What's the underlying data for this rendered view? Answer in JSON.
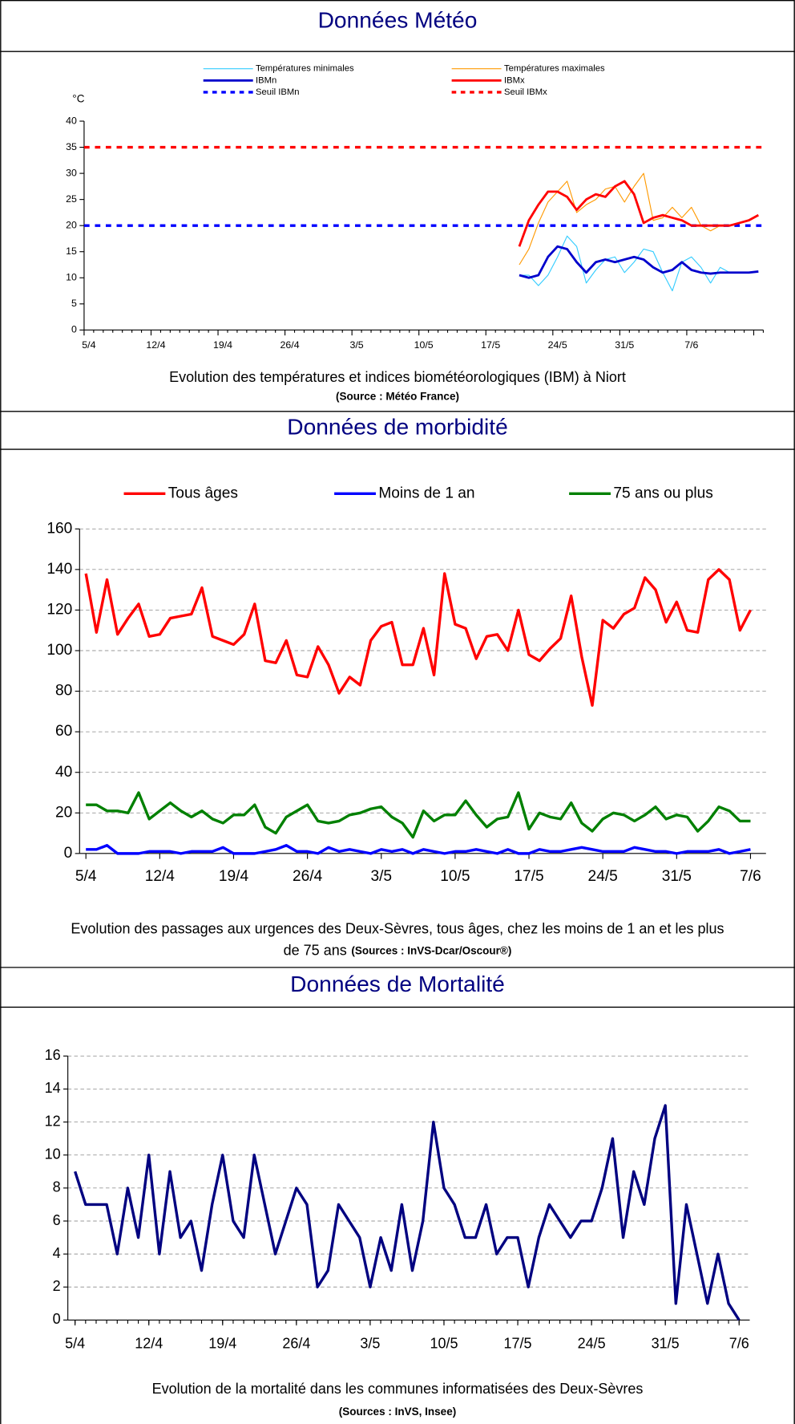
{
  "chart_data": [
    {
      "type": "line",
      "heading": "Données Météo",
      "y_label": "°C",
      "title": "Evolution des températures et indices biométéorologiques (IBM) à Niort",
      "source": "(Source : Météo France)",
      "categories": [
        "5/4",
        null,
        null,
        null,
        null,
        null,
        null,
        "12/4",
        null,
        null,
        null,
        null,
        null,
        null,
        "19/4",
        null,
        null,
        null,
        null,
        null,
        null,
        "26/4",
        null,
        null,
        null,
        null,
        null,
        null,
        "3/5",
        null,
        null,
        null,
        null,
        null,
        null,
        "10/5",
        null,
        null,
        null,
        null,
        null,
        null,
        "17/5",
        null,
        null,
        null,
        null,
        null,
        null,
        "24/5",
        null,
        null,
        null,
        null,
        null,
        null,
        "31/5",
        null,
        null,
        null,
        null,
        null,
        null,
        "7/6",
        null,
        null,
        null,
        null,
        null,
        null,
        null
      ],
      "series": [
        {
          "name": "Températures minimales",
          "color": "#33ccff",
          "values": [
            null,
            null,
            null,
            null,
            null,
            null,
            null,
            null,
            null,
            null,
            null,
            null,
            null,
            null,
            null,
            null,
            null,
            null,
            null,
            null,
            null,
            null,
            null,
            null,
            null,
            null,
            null,
            null,
            null,
            null,
            null,
            null,
            null,
            null,
            null,
            null,
            null,
            null,
            null,
            null,
            null,
            null,
            null,
            null,
            null,
            10.5,
            10.5,
            8.5,
            10.5,
            14,
            18,
            16,
            9,
            11.5,
            13.5,
            14,
            11,
            13,
            15.5,
            15,
            11,
            7.5,
            13,
            14,
            12,
            9,
            12,
            11,
            null,
            null,
            null
          ]
        },
        {
          "name": "Températures maximales",
          "color": "#ff9900",
          "values": [
            null,
            null,
            null,
            null,
            null,
            null,
            null,
            null,
            null,
            null,
            null,
            null,
            null,
            null,
            null,
            null,
            null,
            null,
            null,
            null,
            null,
            null,
            null,
            null,
            null,
            null,
            null,
            null,
            null,
            null,
            null,
            null,
            null,
            null,
            null,
            null,
            null,
            null,
            null,
            null,
            null,
            null,
            null,
            null,
            null,
            12.5,
            15.5,
            20.5,
            24.5,
            26.5,
            28.5,
            22.5,
            24,
            25,
            27,
            27.5,
            24.5,
            27.5,
            30,
            21,
            21.5,
            23.5,
            21.5,
            23.5,
            20,
            19,
            20,
            20,
            null,
            null,
            null
          ]
        },
        {
          "name": "IBMn",
          "color": "#0000cc",
          "values": [
            null,
            null,
            null,
            null,
            null,
            null,
            null,
            null,
            null,
            null,
            null,
            null,
            null,
            null,
            null,
            null,
            null,
            null,
            null,
            null,
            null,
            null,
            null,
            null,
            null,
            null,
            null,
            null,
            null,
            null,
            null,
            null,
            null,
            null,
            null,
            null,
            null,
            null,
            null,
            null,
            null,
            null,
            null,
            null,
            null,
            10.5,
            10,
            10.5,
            14,
            16,
            15.5,
            13,
            11,
            13,
            13.5,
            13,
            13.5,
            14,
            13.5,
            12,
            11,
            11.5,
            13,
            11.5,
            11,
            10.8,
            11,
            11,
            11,
            11,
            11.2
          ]
        },
        {
          "name": "IBMx",
          "color": "#ff0000",
          "values": [
            null,
            null,
            null,
            null,
            null,
            null,
            null,
            null,
            null,
            null,
            null,
            null,
            null,
            null,
            null,
            null,
            null,
            null,
            null,
            null,
            null,
            null,
            null,
            null,
            null,
            null,
            null,
            null,
            null,
            null,
            null,
            null,
            null,
            null,
            null,
            null,
            null,
            null,
            null,
            null,
            null,
            null,
            null,
            null,
            null,
            16,
            21,
            24,
            26.5,
            26.5,
            25.5,
            23,
            25,
            26,
            25.5,
            27.5,
            28.5,
            26,
            20.5,
            21.5,
            22,
            21.5,
            21,
            20,
            20,
            20,
            20,
            20,
            20.5,
            21,
            22
          ]
        }
      ],
      "thresholds": [
        {
          "name": "Seuil IBMn",
          "color": "#0000ff",
          "value": 20
        },
        {
          "name": "Seuil IBMx",
          "color": "#ff0000",
          "value": 35
        }
      ],
      "ylim": [
        0,
        40
      ],
      "yticks": [
        0,
        5,
        10,
        15,
        20,
        25,
        30,
        35,
        40
      ],
      "grid": false
    },
    {
      "type": "line",
      "heading": "Données de morbidité",
      "title_lines": [
        "Evolution des passages aux urgences des Deux-Sèvres, tous âges, chez les moins de 1 an et les plus",
        "de 75 ans"
      ],
      "source": "(Sources : InVS-Dcar/Oscour®)",
      "categories": [
        "5/4",
        null,
        null,
        null,
        null,
        null,
        null,
        "12/4",
        null,
        null,
        null,
        null,
        null,
        null,
        "19/4",
        null,
        null,
        null,
        null,
        null,
        null,
        "26/4",
        null,
        null,
        null,
        null,
        null,
        null,
        "3/5",
        null,
        null,
        null,
        null,
        null,
        null,
        "10/5",
        null,
        null,
        null,
        null,
        null,
        null,
        "17/5",
        null,
        null,
        null,
        null,
        null,
        null,
        "24/5",
        null,
        null,
        null,
        null,
        null,
        null,
        "31/5",
        null,
        null,
        null,
        null,
        null,
        null,
        "7/6"
      ],
      "series": [
        {
          "name": "Tous âges",
          "color": "#ff0000",
          "values": [
            138,
            109,
            135,
            108,
            116,
            123,
            107,
            108,
            116,
            117,
            118,
            131,
            107,
            105,
            103,
            108,
            123,
            95,
            94,
            105,
            88,
            87,
            102,
            93,
            79,
            87,
            83,
            105,
            112,
            114,
            93,
            93,
            111,
            88,
            138,
            113,
            111,
            96,
            107,
            108,
            100,
            120,
            98,
            95,
            101,
            106,
            127,
            97,
            73,
            115,
            111,
            118,
            121,
            136,
            130,
            114,
            124,
            110,
            109,
            135,
            140,
            135,
            110,
            120
          ]
        },
        {
          "name": "Moins de 1 an",
          "color": "#0000ff",
          "values": [
            2,
            2,
            4,
            0,
            0,
            0,
            1,
            1,
            1,
            0,
            1,
            1,
            1,
            3,
            0,
            0,
            0,
            1,
            2,
            4,
            1,
            1,
            0,
            3,
            1,
            2,
            1,
            0,
            2,
            1,
            2,
            0,
            2,
            1,
            0,
            1,
            1,
            2,
            1,
            0,
            2,
            0,
            0,
            2,
            1,
            1,
            2,
            3,
            2,
            1,
            1,
            1,
            3,
            2,
            1,
            1,
            0,
            1,
            1,
            1,
            2,
            0,
            1,
            2
          ]
        },
        {
          "name": "75 ans ou plus",
          "color": "#008000",
          "values": [
            24,
            24,
            21,
            21,
            20,
            30,
            17,
            21,
            25,
            21,
            18,
            21,
            17,
            15,
            19,
            19,
            24,
            13,
            10,
            18,
            21,
            24,
            16,
            15,
            16,
            19,
            20,
            22,
            23,
            18,
            15,
            8,
            21,
            16,
            19,
            19,
            26,
            19,
            13,
            17,
            18,
            30,
            12,
            20,
            18,
            17,
            25,
            15,
            11,
            17,
            20,
            19,
            16,
            19,
            23,
            17,
            19,
            18,
            11,
            16,
            23,
            21,
            16,
            16
          ]
        }
      ],
      "ylim": [
        0,
        160
      ],
      "yticks": [
        0,
        20,
        40,
        60,
        80,
        100,
        120,
        140,
        160
      ],
      "grid": true
    },
    {
      "type": "line",
      "heading": "Données de Mortalité",
      "title": "Evolution de la mortalité dans les communes informatisées des Deux-Sèvres",
      "source": "(Sources : InVS, Insee)",
      "categories": [
        "5/4",
        null,
        null,
        null,
        null,
        null,
        null,
        "12/4",
        null,
        null,
        null,
        null,
        null,
        null,
        "19/4",
        null,
        null,
        null,
        null,
        null,
        null,
        "26/4",
        null,
        null,
        null,
        null,
        null,
        null,
        "3/5",
        null,
        null,
        null,
        null,
        null,
        null,
        "10/5",
        null,
        null,
        null,
        null,
        null,
        null,
        "17/5",
        null,
        null,
        null,
        null,
        null,
        null,
        "24/5",
        null,
        null,
        null,
        null,
        null,
        null,
        "31/5",
        null,
        null,
        null,
        null,
        null,
        null,
        "7/6"
      ],
      "series": [
        {
          "color": "#000080",
          "values": [
            9,
            7,
            7,
            7,
            4,
            8,
            5,
            10,
            4,
            9,
            5,
            6,
            3,
            7,
            10,
            6,
            5,
            10,
            7,
            4,
            6,
            8,
            7,
            2,
            3,
            7,
            6,
            5,
            2,
            5,
            3,
            7,
            3,
            6,
            12,
            8,
            7,
            5,
            5,
            7,
            4,
            5,
            5,
            2,
            5,
            7,
            6,
            5,
            6,
            6,
            8,
            11,
            5,
            9,
            7,
            11,
            13,
            1,
            7,
            4,
            1,
            4,
            1,
            0
          ]
        }
      ],
      "ylim": [
        0,
        16
      ],
      "yticks": [
        0,
        2,
        4,
        6,
        8,
        10,
        12,
        14,
        16
      ],
      "grid": true
    }
  ]
}
